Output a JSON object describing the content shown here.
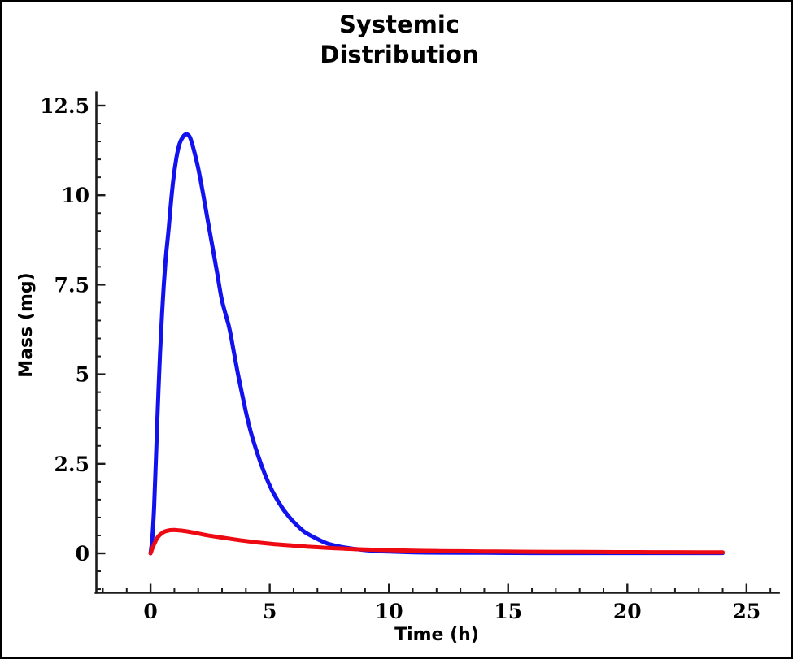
{
  "window": {
    "background": "#ffffff",
    "border_color": "#000000"
  },
  "chart_data": {
    "type": "line",
    "title": "Systemic Distribution",
    "title_lines": [
      "Systemic",
      "Distribution"
    ],
    "xlabel": "Time (h)",
    "ylabel": "Mass (mg)",
    "grid": false,
    "legend": "none",
    "axis_color": "#1b1b1b",
    "x_ticks": [
      0,
      5,
      10,
      15,
      20,
      25
    ],
    "x_tick_labels": [
      "0",
      "5",
      "10",
      "15",
      "20",
      "25"
    ],
    "x_minor_step": 1,
    "x_axis_range": [
      -2.3,
      26.4
    ],
    "y_ticks": [
      0,
      2.5,
      5,
      7.5,
      10,
      12.5
    ],
    "y_tick_labels": [
      "0",
      "2.5",
      "5",
      "7.5",
      "10",
      "12.5"
    ],
    "y_minor_step": 0.5,
    "y_axis_range": [
      -1.1,
      12.9
    ],
    "xlim_data": [
      0,
      24
    ],
    "ylim_data": [
      0,
      11.7
    ],
    "series": [
      {
        "name": "blue-curve",
        "color": "#1212ee",
        "peak": {
          "time_h": 1.5,
          "mass_mg": 11.7
        },
        "points": [
          [
            0,
            0
          ],
          [
            0.07,
            0.4
          ],
          [
            0.15,
            1.3
          ],
          [
            0.22,
            2.5
          ],
          [
            0.3,
            4.0
          ],
          [
            0.4,
            5.6
          ],
          [
            0.5,
            6.9
          ],
          [
            0.62,
            8.1
          ],
          [
            0.75,
            9.0
          ],
          [
            0.9,
            10.1
          ],
          [
            1.05,
            10.9
          ],
          [
            1.2,
            11.4
          ],
          [
            1.35,
            11.62
          ],
          [
            1.5,
            11.7
          ],
          [
            1.65,
            11.62
          ],
          [
            1.8,
            11.3
          ],
          [
            2.0,
            10.75
          ],
          [
            2.2,
            10.05
          ],
          [
            2.4,
            9.3
          ],
          [
            2.6,
            8.55
          ],
          [
            2.8,
            7.8
          ],
          [
            3.0,
            7.05
          ],
          [
            3.3,
            6.3
          ],
          [
            3.5,
            5.6
          ],
          [
            3.7,
            4.9
          ],
          [
            4.0,
            3.95
          ],
          [
            4.2,
            3.4
          ],
          [
            4.5,
            2.75
          ],
          [
            4.8,
            2.2
          ],
          [
            5.1,
            1.75
          ],
          [
            5.4,
            1.4
          ],
          [
            5.6,
            1.2
          ],
          [
            5.9,
            0.95
          ],
          [
            6.2,
            0.75
          ],
          [
            6.5,
            0.58
          ],
          [
            7.0,
            0.4
          ],
          [
            7.4,
            0.28
          ],
          [
            8.0,
            0.18
          ],
          [
            8.5,
            0.13
          ],
          [
            9.0,
            0.09
          ],
          [
            9.5,
            0.065
          ],
          [
            10.0,
            0.05
          ],
          [
            11.0,
            0.03
          ],
          [
            12.0,
            0.02
          ],
          [
            14.0,
            0.015
          ],
          [
            16.0,
            0.01
          ],
          [
            18.0,
            0.01
          ],
          [
            20.0,
            0.01
          ],
          [
            22.0,
            0.01
          ],
          [
            24.0,
            0.01
          ]
        ]
      },
      {
        "name": "red-curve",
        "color": "#ee0a12",
        "peak": {
          "time_h": 0.9,
          "mass_mg": 0.65
        },
        "points": [
          [
            0,
            0
          ],
          [
            0.08,
            0.14
          ],
          [
            0.18,
            0.3
          ],
          [
            0.3,
            0.45
          ],
          [
            0.45,
            0.55
          ],
          [
            0.6,
            0.61
          ],
          [
            0.8,
            0.645
          ],
          [
            1.0,
            0.65
          ],
          [
            1.2,
            0.64
          ],
          [
            1.5,
            0.615
          ],
          [
            1.8,
            0.58
          ],
          [
            2.1,
            0.54
          ],
          [
            2.5,
            0.49
          ],
          [
            3.0,
            0.44
          ],
          [
            3.5,
            0.39
          ],
          [
            4.0,
            0.345
          ],
          [
            4.5,
            0.305
          ],
          [
            5.0,
            0.27
          ],
          [
            5.5,
            0.24
          ],
          [
            6.0,
            0.215
          ],
          [
            6.5,
            0.19
          ],
          [
            7.0,
            0.17
          ],
          [
            7.5,
            0.15
          ],
          [
            8.0,
            0.135
          ],
          [
            8.5,
            0.12
          ],
          [
            9.0,
            0.11
          ],
          [
            9.5,
            0.1
          ],
          [
            10.0,
            0.09
          ],
          [
            11.0,
            0.075
          ],
          [
            12.0,
            0.065
          ],
          [
            13.0,
            0.058
          ],
          [
            14.0,
            0.052
          ],
          [
            15.0,
            0.048
          ],
          [
            16.0,
            0.044
          ],
          [
            17.0,
            0.04
          ],
          [
            18.0,
            0.038
          ],
          [
            19.0,
            0.036
          ],
          [
            20.0,
            0.034
          ],
          [
            21.0,
            0.032
          ],
          [
            22.0,
            0.031
          ],
          [
            23.0,
            0.03
          ],
          [
            24.0,
            0.03
          ]
        ]
      }
    ]
  }
}
